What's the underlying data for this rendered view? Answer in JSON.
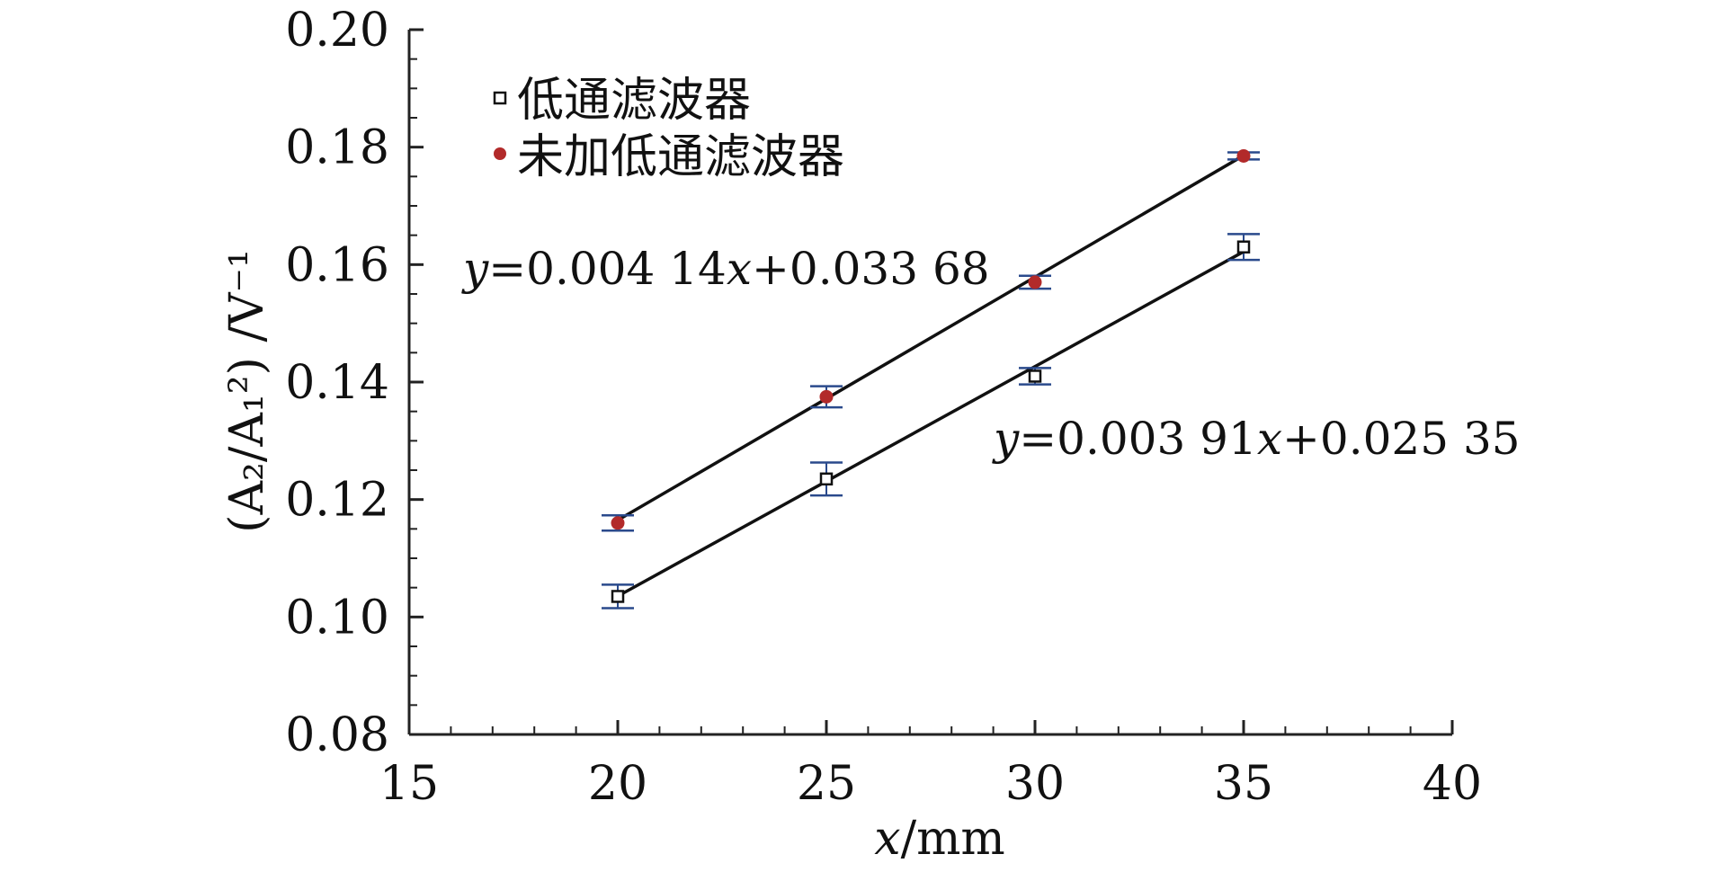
{
  "chart_data": {
    "type": "scatter",
    "xlabel": {
      "var": "x",
      "unit": "/mm"
    },
    "ylabel": {
      "text": "(A₂/A₁²) /V⁻¹"
    },
    "xlim": [
      15,
      40
    ],
    "ylim": [
      0.08,
      0.2
    ],
    "xticks": [
      "15",
      "20",
      "25",
      "30",
      "35",
      "40"
    ],
    "yticks": [
      "0.08",
      "0.10",
      "0.12",
      "0.14",
      "0.16",
      "0.18",
      "0.20"
    ],
    "grid": false,
    "legend_position": "top-left",
    "series": [
      {
        "name": "低通滤波器",
        "marker": "open-square",
        "color": "#111111",
        "error_color": "#2a4a8c",
        "x": [
          20,
          25,
          30,
          35
        ],
        "y": [
          0.1035,
          0.1235,
          0.141,
          0.163
        ],
        "error": [
          0.002,
          0.0028,
          0.0014,
          0.0022
        ],
        "fit": {
          "slope": 0.00391,
          "intercept": 0.02535,
          "label": {
            "y": "y",
            "mid": "=0.003 91",
            "x": "x",
            "rest": "+0.025 35"
          }
        }
      },
      {
        "name": "未加低通滤波器",
        "marker": "filled-circle",
        "color": "#b22a2a",
        "error_color": "#2a4a8c",
        "x": [
          20,
          25,
          30,
          35
        ],
        "y": [
          0.116,
          0.1375,
          0.157,
          0.1785
        ],
        "error": [
          0.0013,
          0.0018,
          0.0011,
          0.0006
        ],
        "fit": {
          "slope": 0.00414,
          "intercept": 0.03368,
          "label": {
            "y": "y",
            "mid": "=0.004 14",
            "x": "x",
            "rest": "+0.033 68"
          }
        }
      }
    ]
  }
}
